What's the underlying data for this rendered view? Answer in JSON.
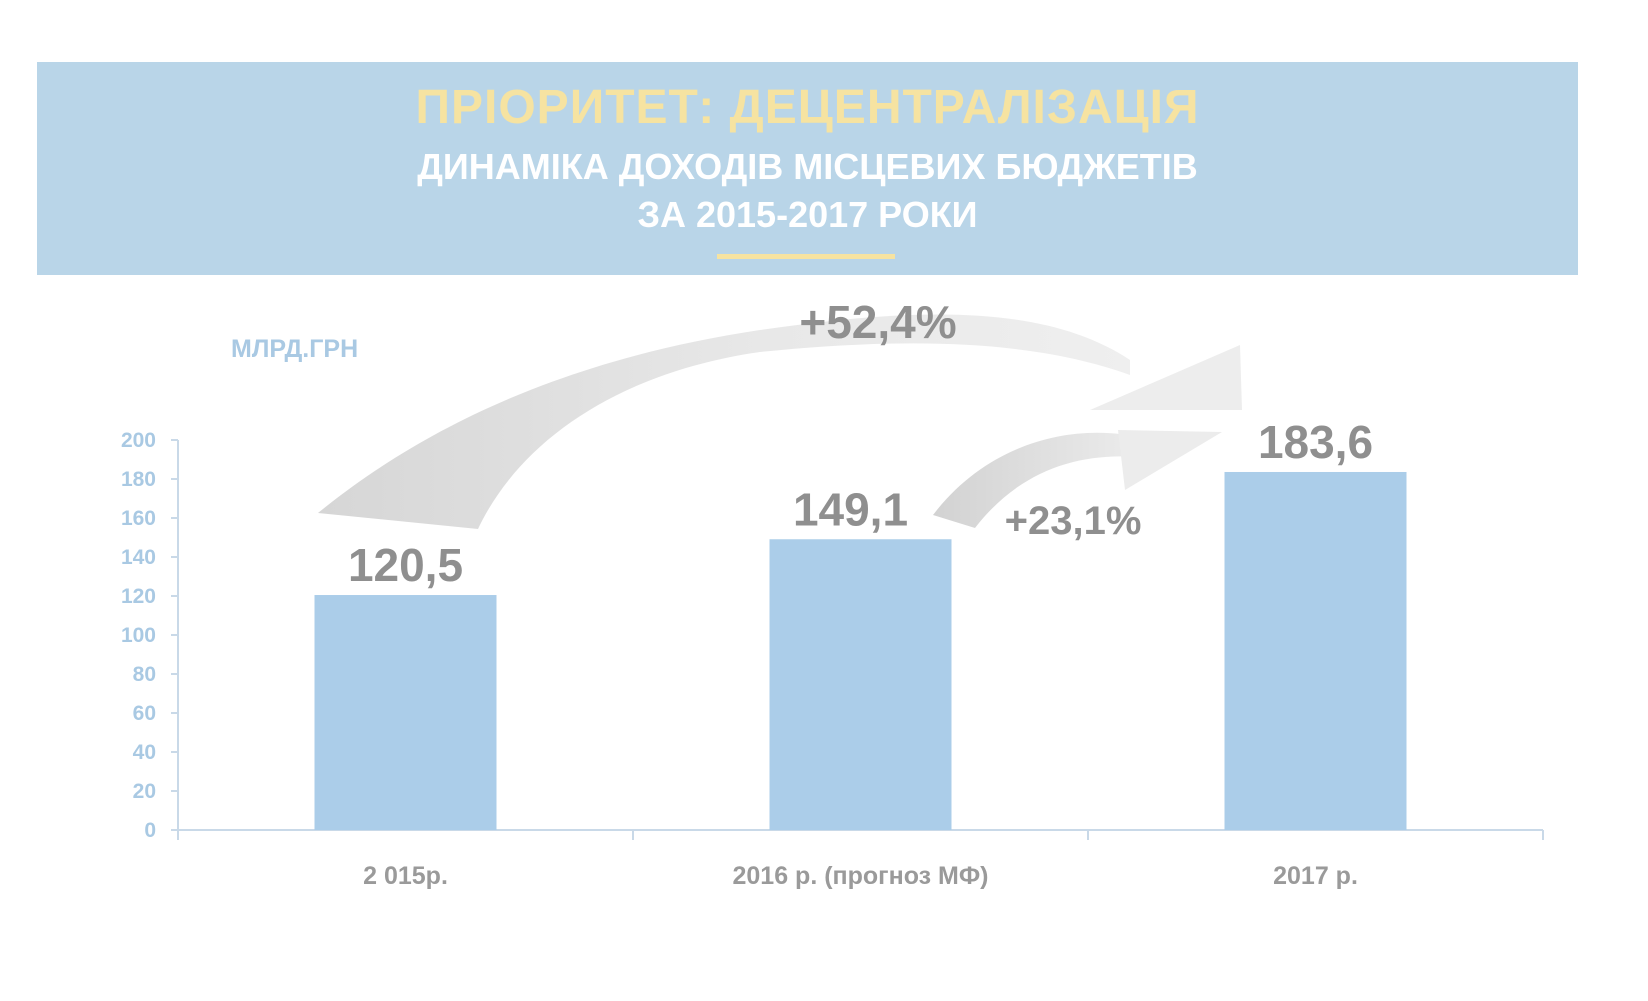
{
  "header": {
    "title": "ПРІОРИТЕТ: ДЕЦЕНТРАЛІЗАЦІЯ",
    "subtitle_line1": "ДИНАМІКА ДОХОДІВ МІСЦЕВИХ БЮДЖЕТІВ",
    "subtitle_line2": "ЗА 2015-2017 РОКИ"
  },
  "colors": {
    "banner": "#b9d5e8",
    "title": "#f6e3a1",
    "bar": "#abcde9",
    "axis": "#c9d9e8",
    "tick_label": "#a9c9e3",
    "value_label": "#8f8f8f"
  },
  "chart_data": {
    "type": "bar",
    "ylabel": "МЛРД.ГРН",
    "categories": [
      "2 015р.",
      "2016 р. (прогноз МФ)",
      "2017 р."
    ],
    "values": [
      120.5,
      149.1,
      183.6
    ],
    "value_labels": [
      "120,5",
      "149,1",
      "183,6"
    ],
    "ylim": [
      0,
      200
    ],
    "yticks": [
      0,
      20,
      40,
      60,
      80,
      100,
      120,
      140,
      160,
      180,
      200
    ],
    "grid": false,
    "legend": "none",
    "annotations": [
      {
        "from": "2 015р.",
        "to": "2017 р.",
        "text": "+52,4%"
      },
      {
        "from": "2016 р. (прогноз МФ)",
        "to": "2017 р.",
        "text": "+23,1%"
      }
    ]
  }
}
